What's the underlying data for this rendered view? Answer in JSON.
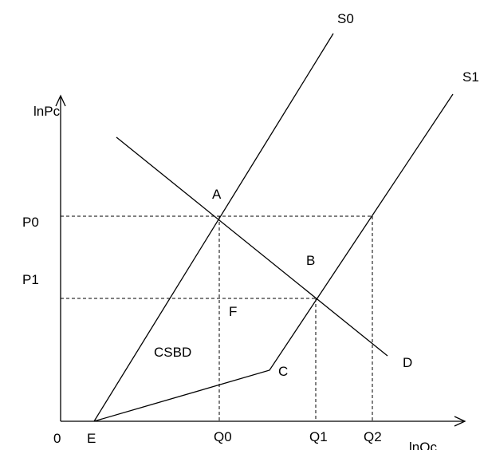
{
  "diagram": {
    "axes": {
      "y_label": "lnPc",
      "x_label": "lnQc",
      "origin_label": "0"
    },
    "y_ticks": {
      "p0": "P0",
      "p1": "P1"
    },
    "x_ticks": {
      "q0": "Q0",
      "q1": "Q1",
      "q2": "Q2"
    },
    "curves": {
      "s0": "S0",
      "s1": "S1"
    },
    "points": {
      "a": "A",
      "b": "B",
      "c": "C",
      "d": "D",
      "e": "E",
      "f": "F"
    },
    "region_label": "CSBD"
  }
}
